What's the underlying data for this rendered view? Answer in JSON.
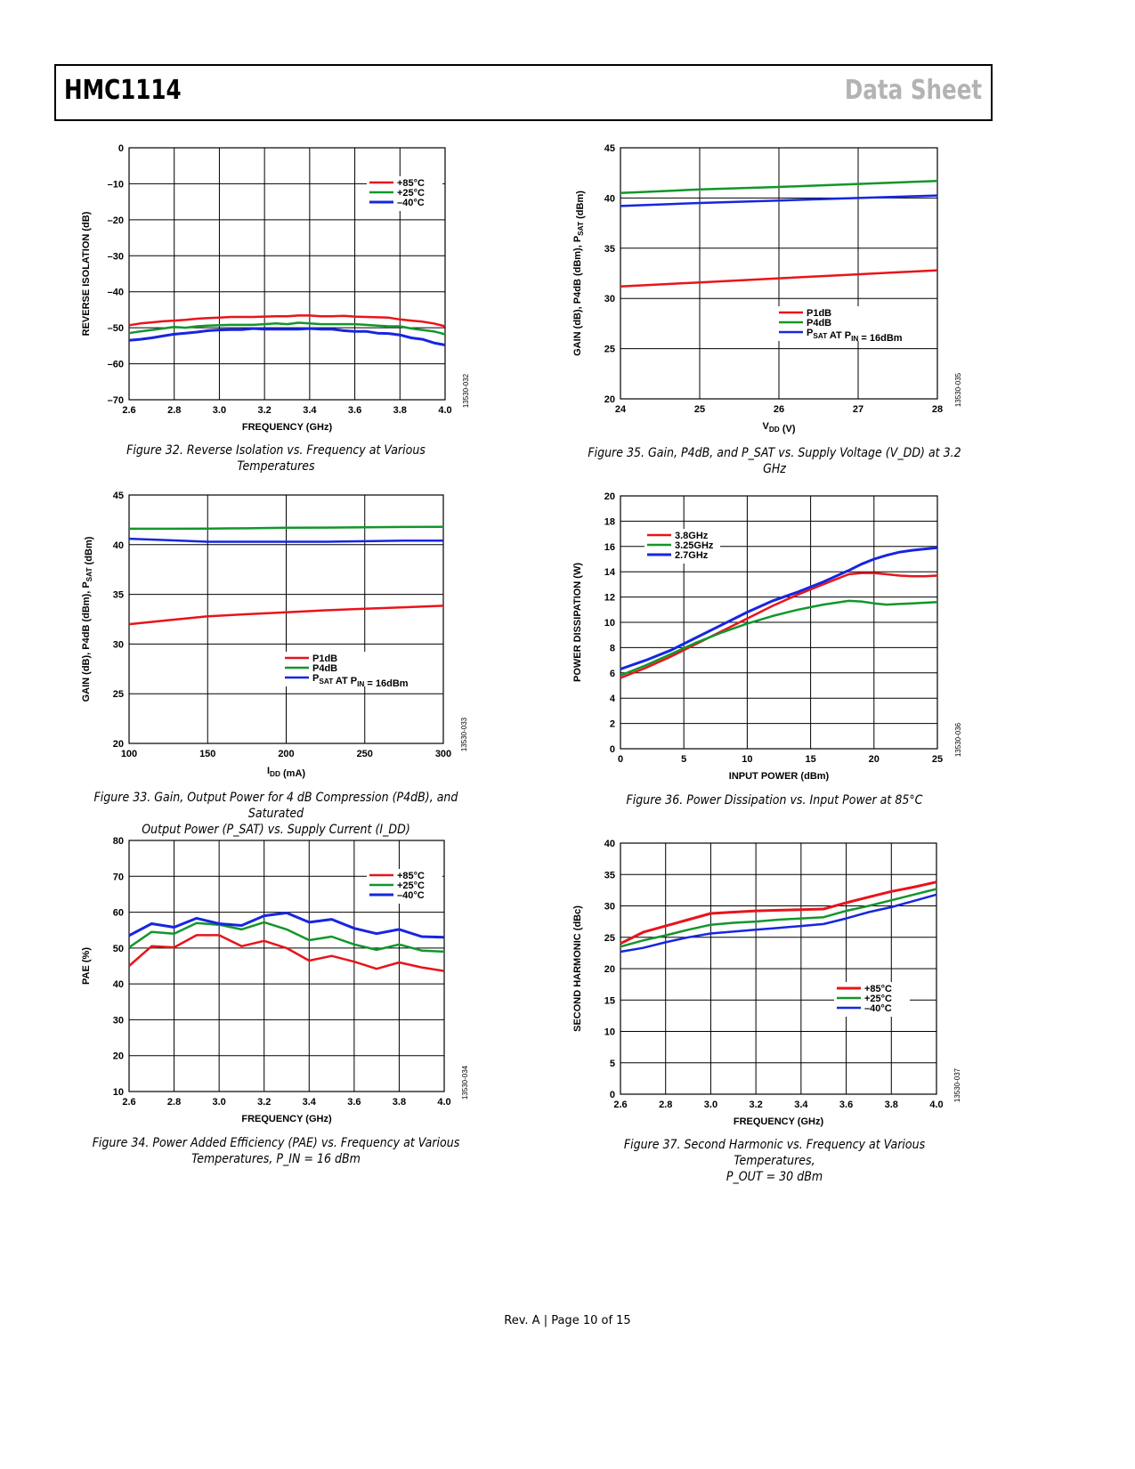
{
  "header": {
    "title": "HMC1114",
    "doc_type": "Data Sheet"
  },
  "footer": {
    "text": "Rev. A | Page 10 of 15"
  },
  "captions": {
    "fig32": "Figure 32. Reverse Isolation vs. Frequency at Various Temperatures",
    "fig33_line1": "Figure 33. Gain, Output Power for 4 dB Compression (P4dB), and Saturated",
    "fig33_line2": "Output Power (P_SAT) vs. Supply Current (I_DD)",
    "fig34_line1": "Figure 34. Power Added Efficiency (PAE) vs. Frequency at Various",
    "fig34_line2": "Temperatures, P_IN = 16 dBm",
    "fig35": "Figure 35. Gain, P4dB, and P_SAT vs. Supply Voltage (V_DD) at 3.2 GHz",
    "fig36": "Figure 36. Power Dissipation vs. Input Power at 85°C",
    "fig37_line1": "Figure 37. Second Harmonic vs. Frequency at Various Temperatures,",
    "fig37_line2": "P_OUT = 30 dBm"
  },
  "colors": {
    "red": "#e8141b",
    "green": "#12962b",
    "blue": "#1626e0"
  },
  "chart_data": [
    {
      "id": "fig32",
      "type": "line",
      "title": "Reverse Isolation vs. Frequency at Various Temperatures",
      "xlabel": "FREQUENCY (GHz)",
      "ylabel": "REVERSE ISOLATION (dB)",
      "xlim": [
        2.6,
        4.0
      ],
      "ylim": [
        -70,
        0
      ],
      "xticks": [
        2.6,
        2.8,
        3.0,
        3.2,
        3.4,
        3.6,
        3.8,
        4.0
      ],
      "xtick_labels": [
        "2.6",
        "2.8",
        "3.0",
        "3.2",
        "3.4",
        "3.6",
        "3.8",
        "4.0"
      ],
      "yticks": [
        -70,
        -60,
        -50,
        -40,
        -30,
        -20,
        -10,
        0
      ],
      "ytick_labels": [
        "–70",
        "–60",
        "–50",
        "–40",
        "–30",
        "–20",
        "–10",
        "0"
      ],
      "grid": true,
      "legend": "top-right",
      "code": "13530-032",
      "x": [
        2.6,
        2.65,
        2.7,
        2.75,
        2.8,
        2.85,
        2.9,
        2.95,
        3.0,
        3.05,
        3.1,
        3.15,
        3.2,
        3.25,
        3.3,
        3.35,
        3.4,
        3.45,
        3.5,
        3.55,
        3.6,
        3.65,
        3.7,
        3.75,
        3.8,
        3.85,
        3.9,
        3.95,
        4.0
      ],
      "series": [
        {
          "name": "+85°C",
          "color": "red",
          "width": 2,
          "values": [
            -49.3,
            -48.8,
            -48.5,
            -48.2,
            -48.0,
            -47.8,
            -47.5,
            -47.3,
            -47.2,
            -47.0,
            -47.0,
            -47.0,
            -46.9,
            -46.8,
            -46.8,
            -46.6,
            -46.6,
            -46.8,
            -46.8,
            -46.7,
            -46.9,
            -47.0,
            -47.1,
            -47.2,
            -47.7,
            -48.0,
            -48.3,
            -48.8,
            -49.6
          ]
        },
        {
          "name": "+25°C",
          "color": "green",
          "width": 2,
          "values": [
            -51.5,
            -51.0,
            -50.6,
            -50.2,
            -49.8,
            -50.0,
            -49.6,
            -49.4,
            -49.3,
            -49.2,
            -49.2,
            -49.2,
            -49.0,
            -48.8,
            -49.0,
            -48.6,
            -48.8,
            -49.0,
            -49.0,
            -49.0,
            -49.0,
            -49.2,
            -49.4,
            -49.6,
            -49.6,
            -50.2,
            -50.6,
            -51.0,
            -51.8
          ]
        },
        {
          "name": "–40°C",
          "color": "blue",
          "width": 2.5,
          "values": [
            -53.5,
            -53.2,
            -52.8,
            -52.3,
            -51.8,
            -51.5,
            -51.2,
            -50.8,
            -50.6,
            -50.5,
            -50.5,
            -50.2,
            -50.4,
            -50.4,
            -50.4,
            -50.4,
            -50.2,
            -50.4,
            -50.4,
            -50.8,
            -51.0,
            -51.0,
            -51.5,
            -51.6,
            -52.0,
            -52.8,
            -53.2,
            -54.2,
            -54.8
          ]
        }
      ]
    },
    {
      "id": "fig33",
      "type": "line",
      "title": "Gain, Output Power for 4 dB Compression (P4dB), and Saturated Output Power (PSAT) vs. Supply Current (IDD)",
      "xlabel": "I_DD (mA)",
      "ylabel": "GAIN (dB), P4dB (dBm), P_SAT (dBm)",
      "xlim": [
        100,
        300
      ],
      "ylim": [
        20,
        45
      ],
      "xticks": [
        100,
        150,
        200,
        250,
        300
      ],
      "xtick_labels": [
        "100",
        "150",
        "200",
        "250",
        "300"
      ],
      "yticks": [
        20,
        25,
        30,
        35,
        40,
        45
      ],
      "ytick_labels": [
        "20",
        "25",
        "30",
        "35",
        "40",
        "45"
      ],
      "grid": true,
      "legend": "bottom-right",
      "code": "13530-033",
      "x": [
        100,
        125,
        150,
        175,
        200,
        225,
        250,
        275,
        300
      ],
      "series": [
        {
          "name": "P1dB",
          "color": "red",
          "width": 2,
          "values": [
            32.0,
            32.4,
            32.8,
            33.0,
            33.2,
            33.4,
            33.55,
            33.7,
            33.85
          ]
        },
        {
          "name": "P4dB",
          "color": "green",
          "width": 2,
          "values": [
            41.6,
            41.6,
            41.62,
            41.65,
            41.7,
            41.72,
            41.75,
            41.78,
            41.8
          ]
        },
        {
          "name": "P_SAT AT P_IN = 16dBm",
          "color": "blue",
          "width": 2,
          "values": [
            40.6,
            40.45,
            40.3,
            40.3,
            40.3,
            40.3,
            40.35,
            40.4,
            40.4
          ]
        }
      ]
    },
    {
      "id": "fig34",
      "type": "line",
      "title": "Power Added Efficiency (PAE) vs. Frequency at Various Temperatures, PIN = 16 dBm",
      "xlabel": "FREQUENCY (GHz)",
      "ylabel": "PAE (%)",
      "xlim": [
        2.6,
        4.0
      ],
      "ylim": [
        10,
        80
      ],
      "xticks": [
        2.6,
        2.8,
        3.0,
        3.2,
        3.4,
        3.6,
        3.8,
        4.0
      ],
      "xtick_labels": [
        "2.6",
        "2.8",
        "3.0",
        "3.2",
        "3.4",
        "3.6",
        "3.8",
        "4.0"
      ],
      "yticks": [
        10,
        20,
        30,
        40,
        50,
        60,
        70,
        80
      ],
      "ytick_labels": [
        "10",
        "20",
        "30",
        "40",
        "50",
        "60",
        "70",
        "80"
      ],
      "grid": true,
      "legend": "top-right",
      "code": "13530-034",
      "x": [
        2.6,
        2.7,
        2.8,
        2.9,
        3.0,
        3.1,
        3.2,
        3.3,
        3.4,
        3.5,
        3.6,
        3.7,
        3.8,
        3.9,
        4.0
      ],
      "series": [
        {
          "name": "+85°C",
          "color": "red",
          "width": 2,
          "values": [
            45.0,
            50.5,
            50.2,
            53.6,
            53.6,
            50.5,
            52.0,
            50.0,
            46.5,
            47.8,
            46.2,
            44.2,
            46.0,
            44.6,
            43.6
          ]
        },
        {
          "name": "+25°C",
          "color": "green",
          "width": 2,
          "values": [
            50.2,
            54.5,
            54.0,
            57.0,
            56.5,
            55.2,
            57.2,
            55.2,
            52.2,
            53.2,
            51.0,
            49.5,
            51.0,
            49.3,
            49.0
          ]
        },
        {
          "name": "–40°C",
          "color": "blue",
          "width": 2.5,
          "values": [
            53.5,
            56.8,
            55.8,
            58.3,
            56.8,
            56.3,
            59.0,
            59.8,
            57.2,
            58.0,
            55.5,
            54.0,
            55.2,
            53.2,
            53.0
          ]
        }
      ]
    },
    {
      "id": "fig35",
      "type": "line",
      "title": "Gain, P4dB, and PSAT vs. Supply Voltage (VDD) at 3.2 GHz",
      "xlabel": "V_DD (V)",
      "ylabel": "GAIN (dB), P4dB (dBm), P_SAT (dBm)",
      "xlim": [
        24,
        28
      ],
      "ylim": [
        20,
        45
      ],
      "xticks": [
        24,
        25,
        26,
        27,
        28
      ],
      "xtick_labels": [
        "24",
        "25",
        "26",
        "27",
        "28"
      ],
      "yticks": [
        20,
        25,
        30,
        35,
        40,
        45
      ],
      "ytick_labels": [
        "20",
        "25",
        "30",
        "35",
        "40",
        "45"
      ],
      "grid": true,
      "legend": "bottom-right",
      "code": "13530-035",
      "x": [
        24,
        25,
        26,
        27,
        28
      ],
      "series": [
        {
          "name": "P1dB",
          "color": "red",
          "width": 2,
          "values": [
            31.2,
            31.6,
            32.0,
            32.4,
            32.8
          ]
        },
        {
          "name": "P4dB",
          "color": "green",
          "width": 2,
          "values": [
            40.5,
            40.85,
            41.1,
            41.4,
            41.7
          ]
        },
        {
          "name": "P_SAT AT P_IN = 16dBm",
          "color": "blue",
          "width": 2,
          "values": [
            39.2,
            39.5,
            39.75,
            40.0,
            40.25
          ]
        }
      ]
    },
    {
      "id": "fig36",
      "type": "line",
      "title": "Power Dissipation vs. Input Power at 85°C",
      "xlabel": "INPUT POWER (dBm)",
      "ylabel": "POWER DISSIPATION (W)",
      "xlim": [
        0,
        25
      ],
      "ylim": [
        0,
        20
      ],
      "xticks": [
        0,
        5,
        10,
        15,
        20,
        25
      ],
      "xtick_labels": [
        "0",
        "5",
        "10",
        "15",
        "20",
        "25"
      ],
      "yticks": [
        0,
        2,
        4,
        6,
        8,
        10,
        12,
        14,
        16,
        18,
        20
      ],
      "ytick_labels": [
        "0",
        "2",
        "4",
        "6",
        "8",
        "10",
        "12",
        "14",
        "16",
        "18",
        "20"
      ],
      "grid": true,
      "legend": "top-left",
      "code": "13530-036",
      "x": [
        0,
        2,
        4,
        6,
        8,
        10,
        12,
        14,
        16,
        18,
        19,
        20,
        21,
        22,
        23,
        24,
        25
      ],
      "series": [
        {
          "name": "3.8GHz",
          "color": "red",
          "width": 2,
          "values": [
            5.6,
            6.4,
            7.3,
            8.3,
            9.3,
            10.3,
            11.3,
            12.2,
            13.0,
            13.8,
            13.9,
            13.9,
            13.8,
            13.7,
            13.65,
            13.65,
            13.7
          ]
        },
        {
          "name": "3.25GHz",
          "color": "green",
          "width": 2,
          "values": [
            5.8,
            6.6,
            7.5,
            8.4,
            9.2,
            9.9,
            10.5,
            11.0,
            11.4,
            11.7,
            11.65,
            11.5,
            11.4,
            11.45,
            11.5,
            11.55,
            11.6
          ]
        },
        {
          "name": "2.7GHz",
          "color": "blue",
          "width": 2.5,
          "values": [
            6.3,
            7.0,
            7.8,
            8.8,
            9.8,
            10.8,
            11.7,
            12.4,
            13.2,
            14.1,
            14.6,
            15.0,
            15.3,
            15.55,
            15.7,
            15.8,
            15.9
          ]
        }
      ]
    },
    {
      "id": "fig37",
      "type": "line",
      "title": "Second Harmonic vs. Frequency at Various Temperatures, POUT = 30 dBm",
      "xlabel": "FREQUENCY (GHz)",
      "ylabel": "SECOND HARMONIC (dBc)",
      "xlim": [
        2.6,
        4.0
      ],
      "ylim": [
        0,
        40
      ],
      "xticks": [
        2.6,
        2.8,
        3.0,
        3.2,
        3.4,
        3.6,
        3.8,
        4.0
      ],
      "xtick_labels": [
        "2.6",
        "2.8",
        "3.0",
        "3.2",
        "3.4",
        "3.6",
        "3.8",
        "4.0"
      ],
      "yticks": [
        0,
        5,
        10,
        15,
        20,
        25,
        30,
        35,
        40
      ],
      "ytick_labels": [
        "0",
        "5",
        "10",
        "15",
        "20",
        "25",
        "30",
        "35",
        "40"
      ],
      "grid": true,
      "legend": "bottom-right",
      "code": "13530-037",
      "x": [
        2.6,
        2.7,
        2.8,
        2.9,
        3.0,
        3.1,
        3.2,
        3.3,
        3.4,
        3.5,
        3.6,
        3.7,
        3.8,
        3.9,
        4.0
      ],
      "series": [
        {
          "name": "+85°C",
          "color": "red",
          "width": 2.5,
          "values": [
            24.0,
            25.8,
            26.8,
            27.8,
            28.8,
            29.0,
            29.2,
            29.3,
            29.4,
            29.5,
            30.5,
            31.4,
            32.3,
            33.0,
            33.8
          ]
        },
        {
          "name": "+25°C",
          "color": "green",
          "width": 2,
          "values": [
            23.5,
            24.5,
            25.3,
            26.2,
            27.0,
            27.3,
            27.5,
            27.8,
            28.0,
            28.2,
            29.2,
            30.0,
            30.9,
            31.8,
            32.7
          ]
        },
        {
          "name": "–40°C",
          "color": "blue",
          "width": 2,
          "values": [
            22.7,
            23.3,
            24.2,
            25.0,
            25.6,
            25.9,
            26.2,
            26.5,
            26.8,
            27.1,
            28.0,
            29.0,
            29.8,
            30.8,
            31.8
          ]
        }
      ]
    }
  ]
}
